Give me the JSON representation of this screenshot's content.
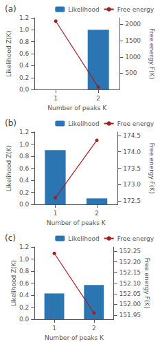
{
  "chart_data": [
    {
      "type": "bar",
      "title": "(a)",
      "xlabel": "Number of peaks K",
      "ylabel": "Likelihood Z(K)",
      "y2label": "Free energy F(K)",
      "categories": [
        "1",
        "2"
      ],
      "series": [
        {
          "name": "Likelihood",
          "type": "bar",
          "color": "#2b75b2",
          "values": [
            0.0,
            1.0
          ]
        },
        {
          "name": "Free energy",
          "type": "line",
          "color": "#a02020",
          "marker": "circle",
          "axis": "y2",
          "values": [
            2100,
            75
          ]
        }
      ],
      "ylim": [
        0,
        1.2
      ],
      "yticks": [
        {
          "value": 0,
          "label": "0.0"
        },
        0.2,
        0.4,
        0.6,
        0.8,
        {
          "value": 1,
          "label": "1.0"
        },
        1.2
      ],
      "y2lim": [
        0,
        2200
      ],
      "y2ticks": [
        500,
        1000,
        1500,
        2000
      ],
      "grid": false,
      "legend": "upper right"
    },
    {
      "type": "bar",
      "title": "(b)",
      "xlabel": "Number of peaks K",
      "ylabel": "Likelihood Z(K)",
      "y2label": "Free energy F(K)",
      "categories": [
        "1",
        "2"
      ],
      "series": [
        {
          "name": "Likelihood",
          "type": "bar",
          "color": "#2b75b2",
          "values": [
            0.9,
            0.1
          ]
        },
        {
          "name": "Free energy",
          "type": "line",
          "color": "#a02020",
          "marker": "circle",
          "axis": "y2",
          "values": [
            172.6,
            174.35
          ]
        }
      ],
      "ylim": [
        0,
        1.2
      ],
      "yticks": [
        {
          "value": 0,
          "label": "0.0"
        },
        0.2,
        0.4,
        0.6,
        0.8,
        {
          "value": 1,
          "label": "1.0"
        },
        1.2
      ],
      "y2lim": [
        172.4,
        174.6
      ],
      "y2ticks": [
        172.5,
        {
          "value": 173,
          "label": "173.0"
        },
        173.5,
        {
          "value": 174,
          "label": "174.0"
        },
        174.5
      ],
      "grid": false,
      "legend": "upper right"
    },
    {
      "type": "bar",
      "title": "(c)",
      "xlabel": "Number of peaks K",
      "ylabel": "Likelihood Z(K)",
      "y2label": "Free energy F(K)",
      "categories": [
        "1",
        "2"
      ],
      "series": [
        {
          "name": "Likelihood",
          "type": "bar",
          "color": "#2b75b2",
          "values": [
            0.43,
            0.57
          ]
        },
        {
          "name": "Free energy",
          "type": "line",
          "color": "#a02020",
          "marker": "circle",
          "axis": "y2",
          "values": [
            152.24,
            151.96
          ]
        }
      ],
      "ylim": [
        0,
        1.2
      ],
      "yticks": [
        {
          "value": 0,
          "label": "0.0"
        },
        0.2,
        0.4,
        0.6,
        0.8,
        {
          "value": 1,
          "label": "1.0"
        },
        1.2
      ],
      "y2lim": [
        151.93,
        152.27
      ],
      "y2ticks": [
        151.95,
        {
          "value": 152,
          "label": "152.00"
        },
        152.05,
        {
          "value": 152.1,
          "label": "152.10"
        },
        152.15,
        {
          "value": 152.2,
          "label": "152.20"
        },
        152.25
      ],
      "grid": false,
      "legend": "upper right"
    }
  ]
}
